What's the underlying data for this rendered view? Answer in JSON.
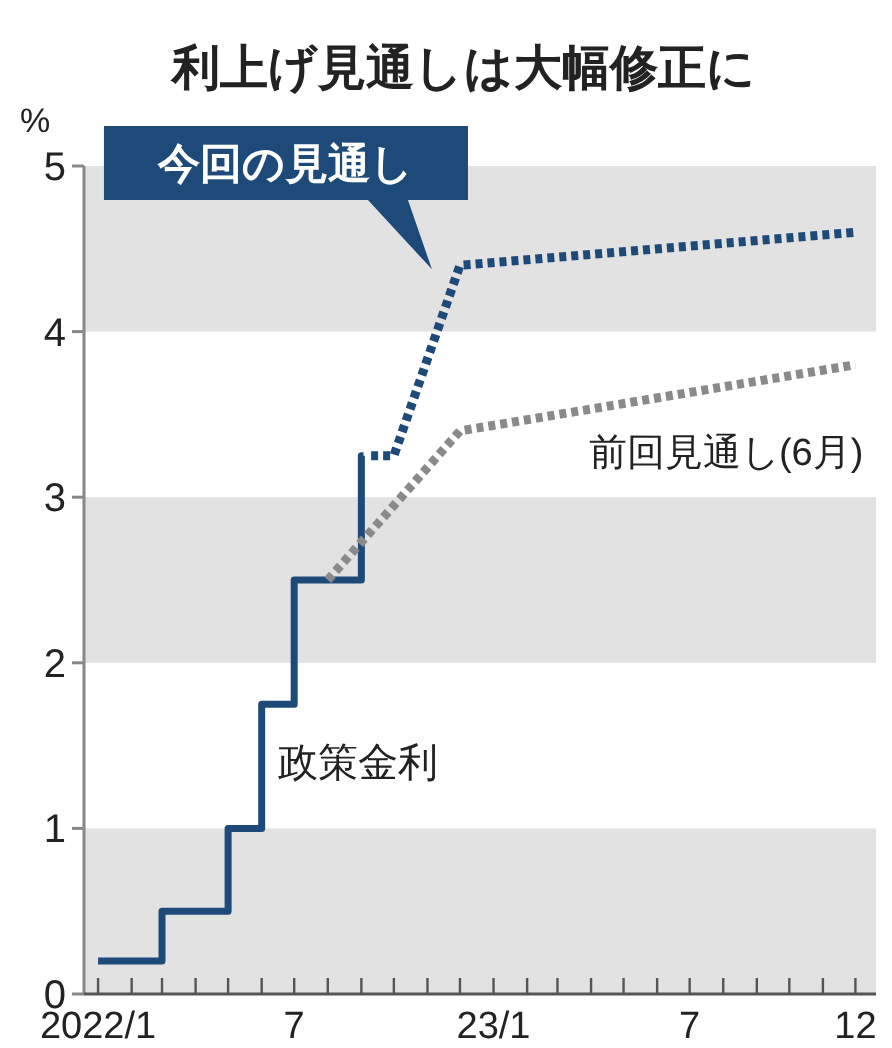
{
  "chart_data": {
    "type": "line",
    "title": "利上げ見通しは大幅修正に",
    "ylabel": "%",
    "xlim": [
      "2021-12-19",
      "2023-12-20"
    ],
    "ylim": [
      0,
      5
    ],
    "yticks": [
      0,
      1,
      2,
      3,
      4,
      5
    ],
    "xticks": [
      {
        "value": "2022-01",
        "label": "2022/1"
      },
      {
        "value": "2022-02",
        "label": null
      },
      {
        "value": "2022-03",
        "label": null
      },
      {
        "value": "2022-04",
        "label": null
      },
      {
        "value": "2022-05",
        "label": null
      },
      {
        "value": "2022-06",
        "label": null
      },
      {
        "value": "2022-07",
        "label": "7"
      },
      {
        "value": "2022-08",
        "label": null
      },
      {
        "value": "2022-09",
        "label": null
      },
      {
        "value": "2022-10",
        "label": null
      },
      {
        "value": "2022-11",
        "label": null
      },
      {
        "value": "2022-12",
        "label": null
      },
      {
        "value": "2023-01",
        "label": "23/1"
      },
      {
        "value": "2023-02",
        "label": null
      },
      {
        "value": "2023-03",
        "label": null
      },
      {
        "value": "2023-04",
        "label": null
      },
      {
        "value": "2023-05",
        "label": null
      },
      {
        "value": "2023-06",
        "label": null
      },
      {
        "value": "2023-07",
        "label": "7"
      },
      {
        "value": "2023-08",
        "label": null
      },
      {
        "value": "2023-09",
        "label": null
      },
      {
        "value": "2023-10",
        "label": null
      },
      {
        "value": "2023-11",
        "label": null
      },
      {
        "value": "2023-12",
        "label": "12"
      }
    ],
    "bands": [
      {
        "axis": "y",
        "from": 0,
        "to": 1,
        "color": "#e2e2e2"
      },
      {
        "axis": "y",
        "from": 2,
        "to": 3,
        "color": "#e2e2e2"
      },
      {
        "axis": "y",
        "from": 4,
        "to": 5,
        "color": "#e2e2e2"
      }
    ],
    "grid": false,
    "marker": "none",
    "series": [
      {
        "name": "政策金利",
        "type": "step",
        "color": "#1d4a78",
        "line_style": "solid",
        "x": [
          "2022-01",
          "2022-03",
          "2022-05",
          "2022-06",
          "2022-07",
          "2022-09",
          "2022-09-03"
        ],
        "values": [
          0.2,
          0.5,
          1.0,
          1.75,
          2.5,
          3.25,
          3.25
        ]
      },
      {
        "name": "今回の見通し",
        "color": "#1d4a78",
        "line_style": "dotted",
        "x": [
          "2022-09-10",
          "2022-10",
          "2022-12",
          "2023-12"
        ],
        "values": [
          3.25,
          3.25,
          4.4,
          4.6
        ]
      },
      {
        "name": "前回見通し(6月)",
        "color": "#8a8a8a",
        "line_style": "dotted",
        "x": [
          "2022-08",
          "2022-12",
          "2023-12"
        ],
        "values": [
          2.5,
          3.4,
          3.8
        ]
      }
    ]
  }
}
